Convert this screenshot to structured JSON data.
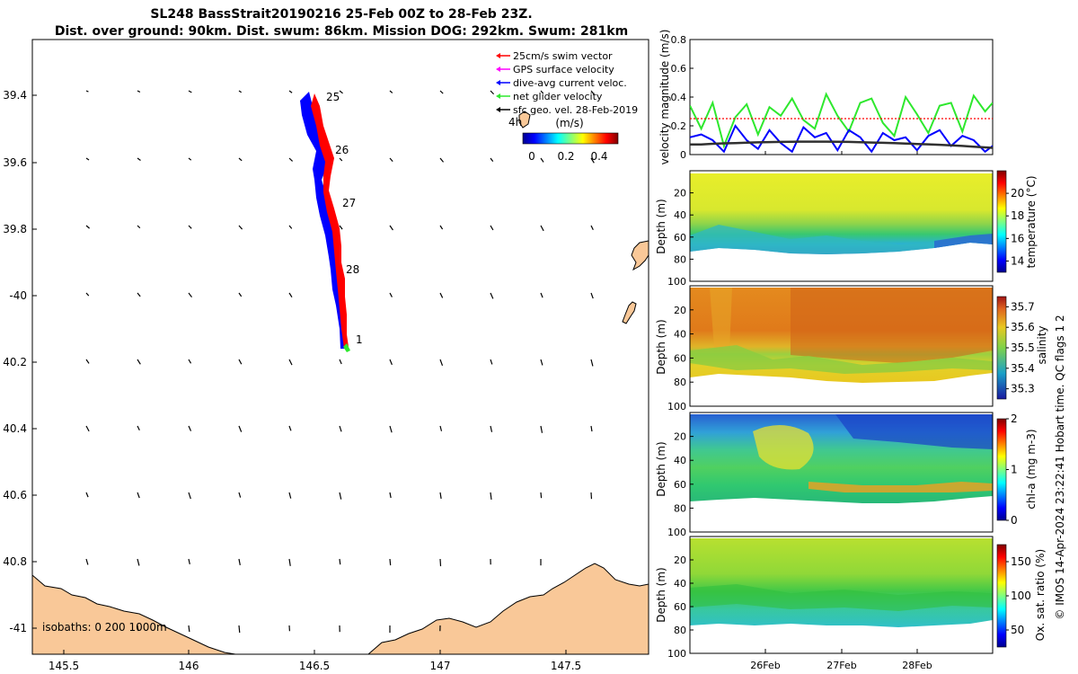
{
  "header": {
    "title_line1": "SL248 BassStrait20190216 25-Feb 00Z to 28-Feb 23Z.",
    "title_line2": "Dist. over ground: 90km. Dist. swum: 86km. Mission DOG: 292km. Swum: 281km"
  },
  "colors": {
    "land": "#f9c898",
    "red": "#ff0000",
    "blue": "#0000ff",
    "green": "#2ee82e",
    "magenta": "#ff00ff",
    "black": "#000000"
  },
  "map": {
    "lon_ticks": [
      "145.5",
      "146",
      "146.5",
      "147",
      "147.5"
    ],
    "lat_ticks": [
      "39.4",
      "39.6",
      "39.8",
      "-40",
      "40.2",
      "40.4",
      "40.6",
      "40.8",
      "-41"
    ],
    "legend": [
      {
        "label": "25cm/s swim vector",
        "color": "#ff0000",
        "icon": "arrow-left-icon"
      },
      {
        "label": "GPS surface velocity",
        "color": "#ff00ff",
        "icon": "arrow-left-icon"
      },
      {
        "label": "dive-avg current veloc.",
        "color": "#0000ff",
        "icon": "arrow-left-icon"
      },
      {
        "label": "net glider velocity",
        "color": "#2ee82e",
        "icon": "arrow-left-icon"
      },
      {
        "label": "sfc geo. vel. 28-Feb-2019",
        "color": "#000000",
        "icon": "arrow-left-icon"
      }
    ],
    "colorbar_label": "(m/s)",
    "colorbar_ticks": [
      "0",
      "0.2",
      "0.4"
    ],
    "day_labels": [
      "25",
      "26",
      "27",
      "28",
      "1"
    ],
    "time_marker": "4h",
    "isobath_note": "isobaths: 0   200  1000m"
  },
  "chart_data": [
    {
      "type": "line",
      "title": "",
      "ylabel": "velocity magnitude (m/s)",
      "ylim": [
        0,
        0.8
      ],
      "yticks": [
        "0",
        "0.2",
        "0.4",
        "0.6",
        "0.8"
      ],
      "x": [
        25.0,
        25.15,
        25.3,
        25.45,
        25.6,
        25.75,
        25.9,
        26.05,
        26.2,
        26.35,
        26.5,
        26.65,
        26.8,
        26.95,
        27.1,
        27.25,
        27.4,
        27.55,
        27.7,
        27.85,
        28.0,
        28.15,
        28.3,
        28.45,
        28.6,
        28.75,
        28.9,
        29.0
      ],
      "series": [
        {
          "name": "net glider velocity",
          "color": "#2ee82e",
          "values": [
            0.34,
            0.18,
            0.36,
            0.06,
            0.26,
            0.35,
            0.14,
            0.33,
            0.27,
            0.39,
            0.24,
            0.18,
            0.42,
            0.27,
            0.16,
            0.36,
            0.39,
            0.22,
            0.13,
            0.4,
            0.28,
            0.15,
            0.34,
            0.36,
            0.16,
            0.41,
            0.3,
            0.36
          ]
        },
        {
          "name": "dive-avg current veloc.",
          "color": "#0000ff",
          "values": [
            0.12,
            0.14,
            0.1,
            0.02,
            0.2,
            0.1,
            0.04,
            0.17,
            0.08,
            0.02,
            0.19,
            0.12,
            0.15,
            0.03,
            0.17,
            0.12,
            0.02,
            0.15,
            0.1,
            0.12,
            0.03,
            0.13,
            0.17,
            0.06,
            0.13,
            0.1,
            0.02,
            0.06
          ]
        },
        {
          "name": "25cm/s swim vector",
          "color": "#ff0000",
          "values": [
            0.25,
            0.25,
            0.25,
            0.25,
            0.25,
            0.25,
            0.25,
            0.25,
            0.25,
            0.25,
            0.25,
            0.25,
            0.25,
            0.25,
            0.25,
            0.25,
            0.25,
            0.25,
            0.25,
            0.25,
            0.25,
            0.25,
            0.25,
            0.25,
            0.25,
            0.25,
            0.25,
            0.25
          ]
        },
        {
          "name": "sfc geo. vel. 28-Feb-2019",
          "color": "#303030",
          "values": [
            0.07,
            0.07,
            0.075,
            0.078,
            0.08,
            0.083,
            0.085,
            0.087,
            0.088,
            0.089,
            0.09,
            0.09,
            0.09,
            0.089,
            0.088,
            0.086,
            0.084,
            0.082,
            0.08,
            0.077,
            0.074,
            0.071,
            0.068,
            0.064,
            0.06,
            0.055,
            0.05,
            0.047
          ]
        }
      ]
    },
    {
      "type": "heatmap",
      "title": "",
      "ylabel": "Depth (m)",
      "yticks": [
        "20",
        "40",
        "60",
        "80",
        "100"
      ],
      "colorbar_label": "temperature (°C)",
      "colorbar_ticks": [
        "14",
        "16",
        "18",
        "20"
      ],
      "clim": [
        13,
        22
      ]
    },
    {
      "type": "heatmap",
      "title": "",
      "ylabel": "Depth (m)",
      "yticks": [
        "20",
        "40",
        "60",
        "80",
        "100"
      ],
      "colorbar_label": "salinity",
      "colorbar_ticks": [
        "35.3",
        "35.4",
        "35.5",
        "35.6",
        "35.7"
      ],
      "clim": [
        35.25,
        35.75
      ]
    },
    {
      "type": "heatmap",
      "title": "",
      "ylabel": "Depth (m)",
      "yticks": [
        "20",
        "40",
        "60",
        "80",
        "100"
      ],
      "colorbar_label": "chl-a (mg m-3)",
      "colorbar_ticks": [
        "0",
        "1",
        "2"
      ],
      "clim": [
        0,
        2
      ]
    },
    {
      "type": "heatmap",
      "title": "",
      "ylabel": "Depth (m)",
      "yticks": [
        "20",
        "40",
        "60",
        "80",
        "100"
      ],
      "xticks": [
        "26Feb",
        "27Feb",
        "28Feb"
      ],
      "colorbar_label": "Ox. sat. ratio (%)",
      "colorbar_ticks": [
        "50",
        "100",
        "150"
      ],
      "clim": [
        25,
        175
      ]
    }
  ],
  "side_note": "© IMOS 14-Apr-2024 23:22:41 Hobart time. QC flags 1  2"
}
